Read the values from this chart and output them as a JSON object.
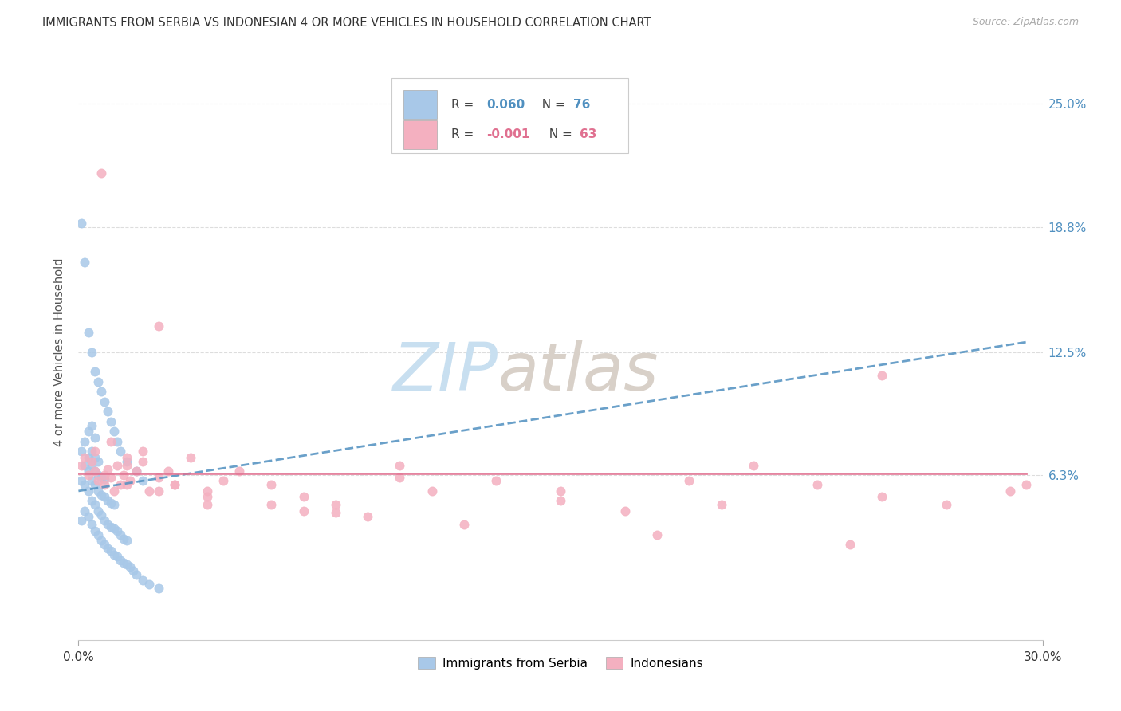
{
  "title": "IMMIGRANTS FROM SERBIA VS INDONESIAN 4 OR MORE VEHICLES IN HOUSEHOLD CORRELATION CHART",
  "source": "Source: ZipAtlas.com",
  "ylabel": "4 or more Vehicles in Household",
  "y_tick_labels": [
    "6.3%",
    "12.5%",
    "18.8%",
    "25.0%"
  ],
  "y_tick_values": [
    0.063,
    0.125,
    0.188,
    0.25
  ],
  "xlim": [
    0.0,
    0.3
  ],
  "ylim": [
    -0.02,
    0.27
  ],
  "serbia_R": 0.06,
  "serbia_N": 76,
  "indonesia_R": -0.001,
  "indonesia_N": 63,
  "serbia_color": "#a8c8e8",
  "serbia_trend_color": "#5090c0",
  "indonesia_color": "#f4b0c0",
  "indonesia_trend_color": "#e07090",
  "watermark_zip_color": "#c8dff0",
  "watermark_atlas_color": "#d8d0c8",
  "background_color": "#ffffff",
  "grid_color": "#dddddd",
  "title_color": "#333333",
  "source_color": "#aaaaaa",
  "right_tick_color": "#5090c0",
  "legend_R_color": "#333333",
  "legend_val_serbia_color": "#5090c0",
  "legend_val_indonesia_color": "#e07090",
  "serbia_x": [
    0.001,
    0.001,
    0.001,
    0.002,
    0.002,
    0.002,
    0.002,
    0.003,
    0.003,
    0.003,
    0.003,
    0.003,
    0.004,
    0.004,
    0.004,
    0.004,
    0.004,
    0.004,
    0.005,
    0.005,
    0.005,
    0.005,
    0.005,
    0.005,
    0.006,
    0.006,
    0.006,
    0.006,
    0.006,
    0.007,
    0.007,
    0.007,
    0.007,
    0.008,
    0.008,
    0.008,
    0.008,
    0.009,
    0.009,
    0.009,
    0.01,
    0.01,
    0.01,
    0.011,
    0.011,
    0.011,
    0.012,
    0.012,
    0.013,
    0.013,
    0.014,
    0.014,
    0.015,
    0.015,
    0.016,
    0.017,
    0.018,
    0.02,
    0.022,
    0.025,
    0.001,
    0.002,
    0.003,
    0.004,
    0.005,
    0.006,
    0.007,
    0.008,
    0.009,
    0.01,
    0.011,
    0.012,
    0.013,
    0.015,
    0.018,
    0.02
  ],
  "serbia_y": [
    0.04,
    0.06,
    0.075,
    0.045,
    0.058,
    0.068,
    0.08,
    0.042,
    0.055,
    0.065,
    0.072,
    0.085,
    0.038,
    0.05,
    0.06,
    0.068,
    0.075,
    0.088,
    0.035,
    0.048,
    0.058,
    0.065,
    0.072,
    0.082,
    0.033,
    0.045,
    0.055,
    0.063,
    0.07,
    0.03,
    0.043,
    0.053,
    0.062,
    0.028,
    0.04,
    0.052,
    0.061,
    0.026,
    0.038,
    0.05,
    0.025,
    0.037,
    0.049,
    0.023,
    0.036,
    0.048,
    0.022,
    0.035,
    0.02,
    0.033,
    0.019,
    0.031,
    0.018,
    0.03,
    0.017,
    0.015,
    0.013,
    0.01,
    0.008,
    0.006,
    0.19,
    0.17,
    0.135,
    0.125,
    0.115,
    0.11,
    0.105,
    0.1,
    0.095,
    0.09,
    0.085,
    0.08,
    0.075,
    0.07,
    0.065,
    0.06
  ],
  "indonesia_x": [
    0.001,
    0.002,
    0.003,
    0.004,
    0.005,
    0.006,
    0.007,
    0.008,
    0.009,
    0.01,
    0.011,
    0.012,
    0.013,
    0.014,
    0.015,
    0.016,
    0.018,
    0.02,
    0.022,
    0.025,
    0.028,
    0.03,
    0.035,
    0.04,
    0.045,
    0.05,
    0.06,
    0.07,
    0.08,
    0.09,
    0.1,
    0.11,
    0.13,
    0.15,
    0.17,
    0.19,
    0.21,
    0.23,
    0.25,
    0.27,
    0.29,
    0.005,
    0.01,
    0.015,
    0.02,
    0.025,
    0.03,
    0.04,
    0.06,
    0.08,
    0.1,
    0.15,
    0.2,
    0.25,
    0.008,
    0.015,
    0.025,
    0.04,
    0.07,
    0.12,
    0.18,
    0.24,
    0.295
  ],
  "indonesia_y": [
    0.068,
    0.072,
    0.063,
    0.07,
    0.065,
    0.06,
    0.215,
    0.058,
    0.066,
    0.062,
    0.055,
    0.068,
    0.058,
    0.063,
    0.072,
    0.06,
    0.065,
    0.07,
    0.055,
    0.138,
    0.065,
    0.058,
    0.072,
    0.055,
    0.06,
    0.065,
    0.058,
    0.052,
    0.048,
    0.042,
    0.068,
    0.055,
    0.06,
    0.05,
    0.045,
    0.06,
    0.068,
    0.058,
    0.052,
    0.048,
    0.055,
    0.075,
    0.08,
    0.068,
    0.075,
    0.062,
    0.058,
    0.052,
    0.048,
    0.044,
    0.062,
    0.055,
    0.048,
    0.113,
    0.063,
    0.058,
    0.055,
    0.048,
    0.045,
    0.038,
    0.033,
    0.028,
    0.058
  ],
  "serbia_trend_x": [
    0.0,
    0.295
  ],
  "serbia_trend_y": [
    0.055,
    0.13
  ],
  "indonesia_trend_y": [
    0.064,
    0.064
  ]
}
